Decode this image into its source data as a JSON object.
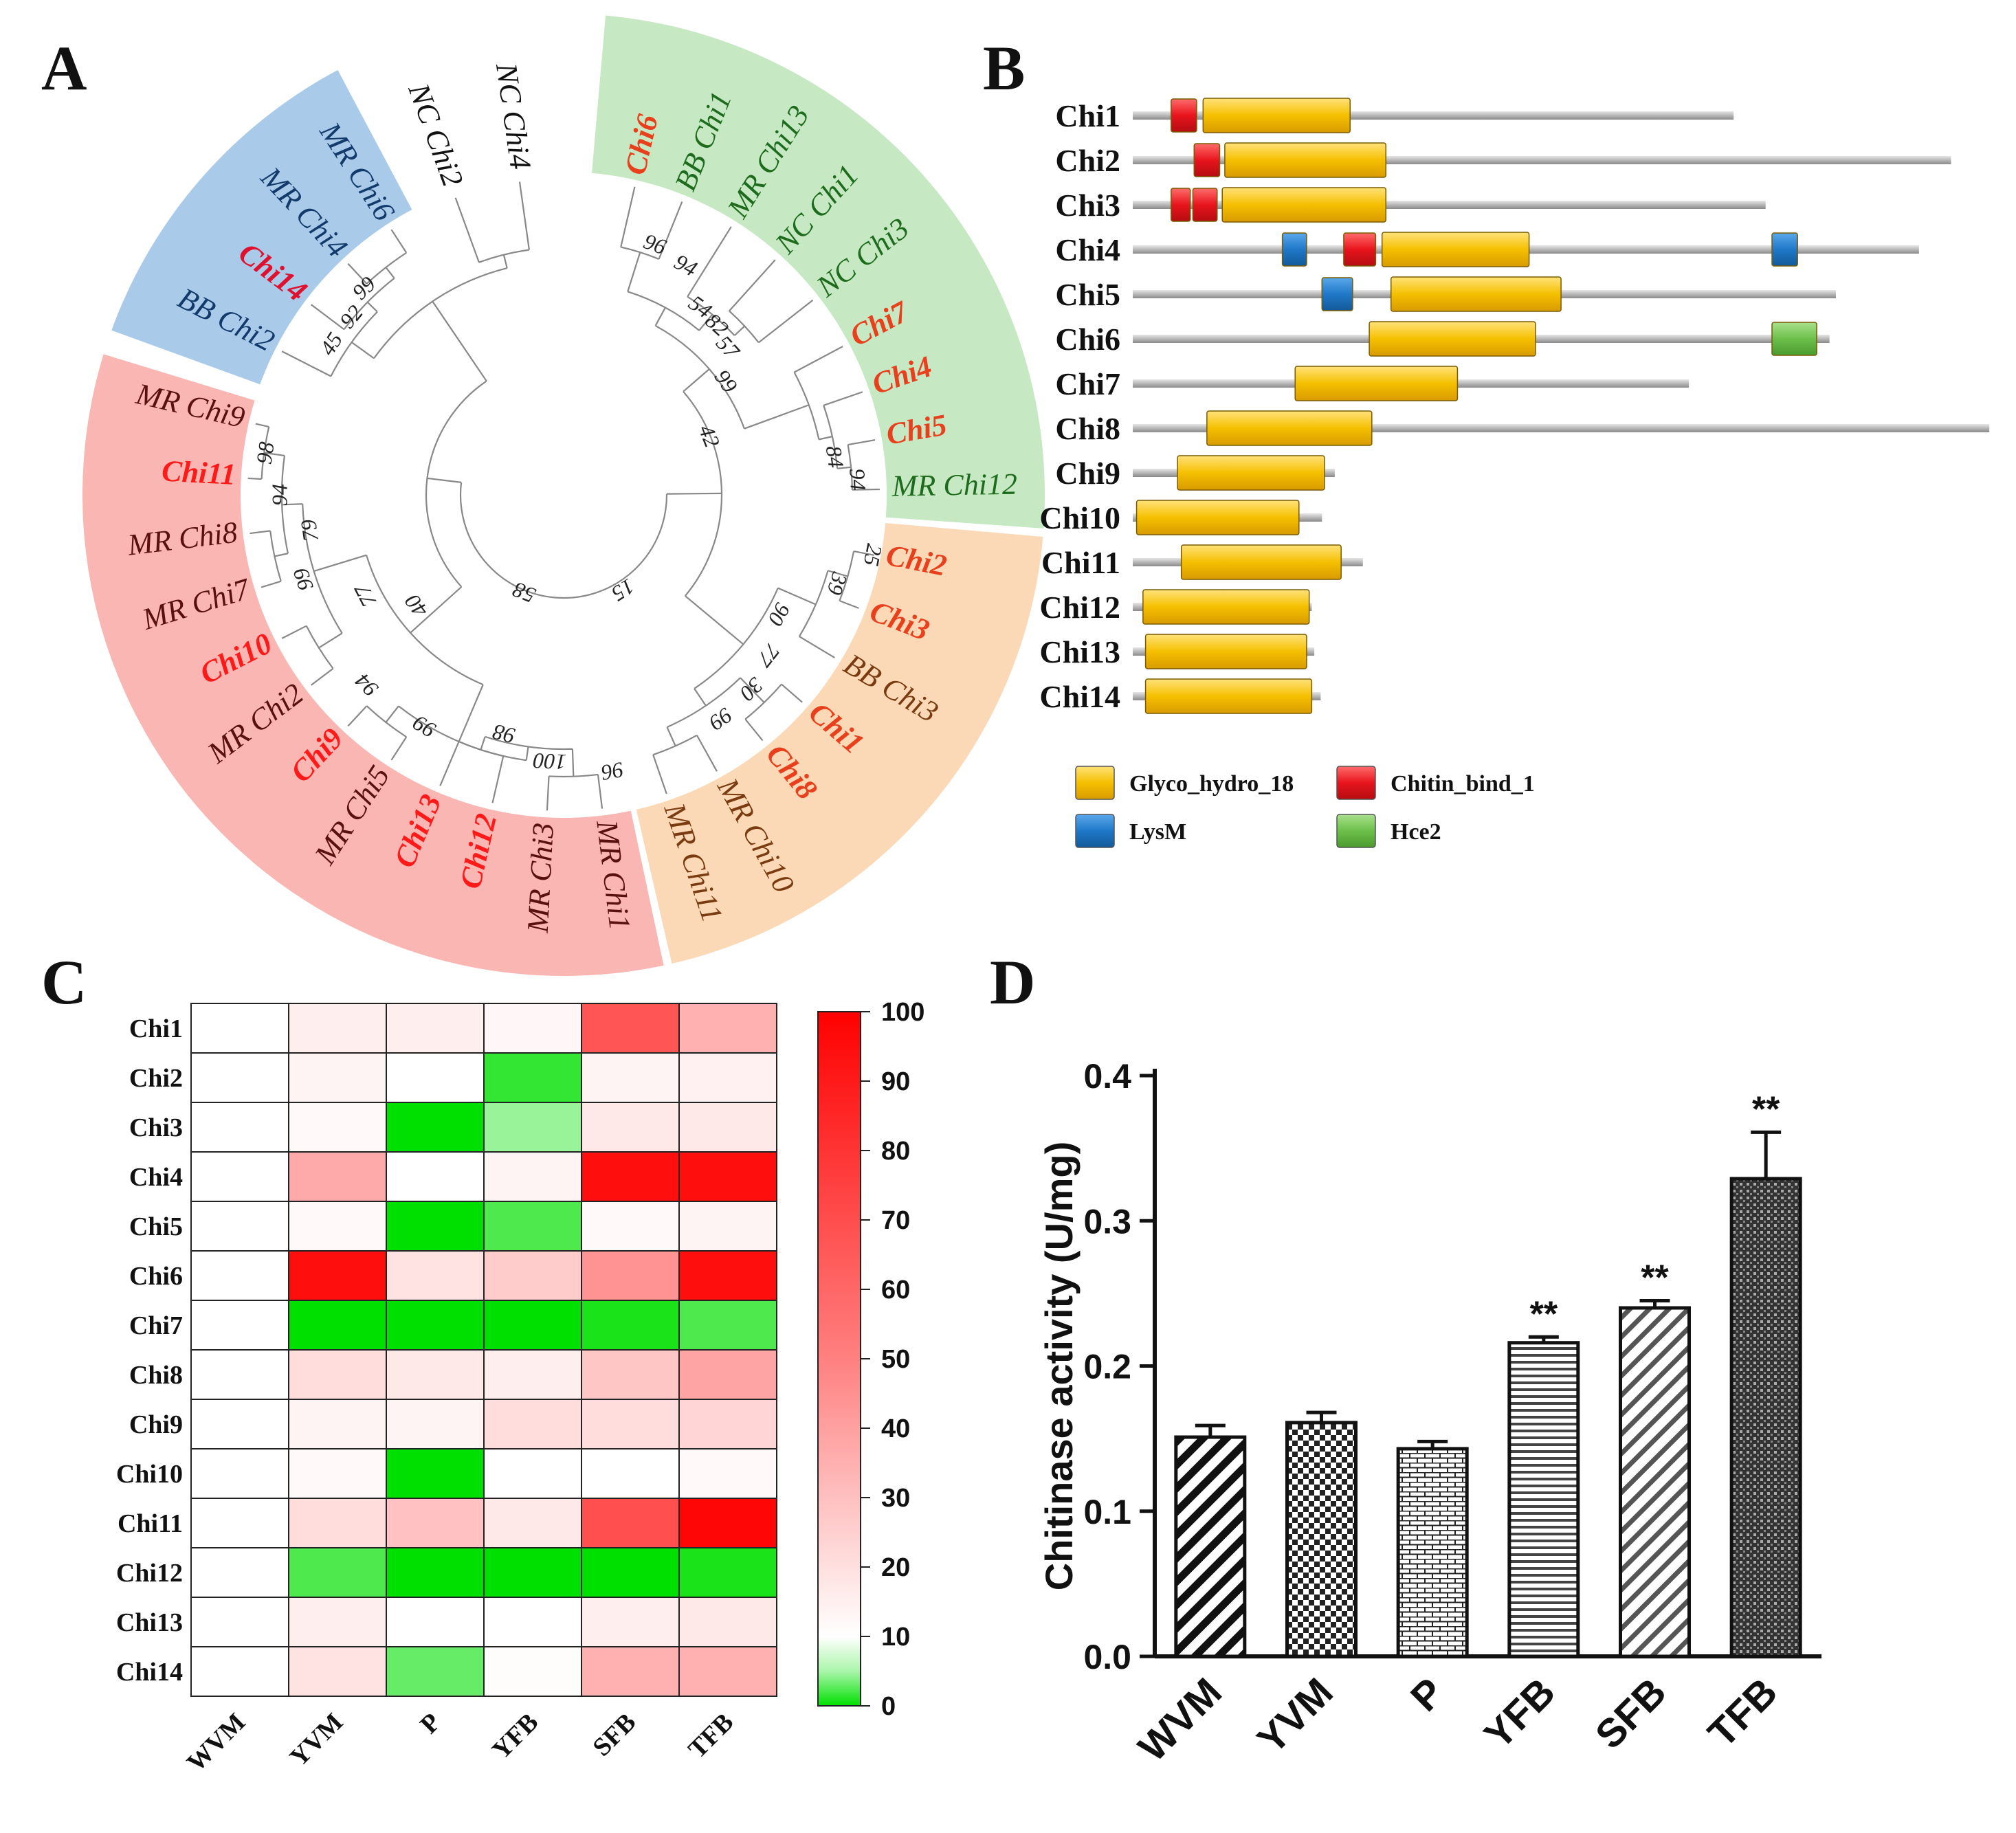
{
  "panels": {
    "a": "A",
    "b": "B",
    "c": "C",
    "d": "D"
  },
  "colors": {
    "green_clade": "#c6e8c2",
    "orange_clade": "#fcd9b6",
    "red_clade": "#f9b6b2",
    "blue_clade": "#a9cbe9",
    "highlight_text": "#ff1a1a",
    "glyco": "#f5c000",
    "chitin": "#e8141c",
    "lysm": "#1f78c8",
    "hce2": "#6cc04a"
  },
  "tree": {
    "leaves": [
      {
        "label": "Chi6",
        "angle": -77,
        "color": "#e8401c",
        "bold": true
      },
      {
        "label": "BB Chi1",
        "angle": -68,
        "color": "#1d6b1d"
      },
      {
        "label": "MR Chi13",
        "angle": -58,
        "color": "#1d6b1d"
      },
      {
        "label": "NC Chi1",
        "angle": -48,
        "color": "#1d6b1d"
      },
      {
        "label": "NC Chi3",
        "angle": -38,
        "color": "#1d6b1d"
      },
      {
        "label": "Chi7",
        "angle": -28,
        "color": "#e8401c",
        "bold": true
      },
      {
        "label": "Chi4",
        "angle": -19,
        "color": "#e8401c",
        "bold": true
      },
      {
        "label": "Chi5",
        "angle": -10,
        "color": "#e8401c",
        "bold": true
      },
      {
        "label": "MR Chi12",
        "angle": -1,
        "color": "#1d6b1d"
      },
      {
        "label": "Chi2",
        "angle": 11,
        "color": "#e8401c",
        "bold": true
      },
      {
        "label": "Chi3",
        "angle": 21,
        "color": "#e8401c",
        "bold": true
      },
      {
        "label": "BB Chi3",
        "angle": 31,
        "color": "#7a3b10"
      },
      {
        "label": "Chi1",
        "angle": 41,
        "color": "#e8401c",
        "bold": true
      },
      {
        "label": "Chi8",
        "angle": 51,
        "color": "#e8401c",
        "bold": true
      },
      {
        "label": "MR Chi10",
        "angle": 61,
        "color": "#7a3b10"
      },
      {
        "label": "MR Chi11",
        "angle": 71,
        "color": "#7a3b10"
      },
      {
        "label": "MR Chi1",
        "angle": 83,
        "color": "#5a1010"
      },
      {
        "label": "MR Chi3",
        "angle": 93,
        "color": "#5a1010"
      },
      {
        "label": "Chi12",
        "angle": 103,
        "color": "#ff1a1a",
        "bold": true
      },
      {
        "label": "Chi13",
        "angle": 113,
        "color": "#ff1a1a",
        "bold": true
      },
      {
        "label": "MR Chi5",
        "angle": 123,
        "color": "#5a1010"
      },
      {
        "label": "Chi9",
        "angle": 133,
        "color": "#ff1a1a",
        "bold": true
      },
      {
        "label": "MR Chi2",
        "angle": 143,
        "color": "#5a1010"
      },
      {
        "label": "Chi10",
        "angle": 153,
        "color": "#ff1a1a",
        "bold": true
      },
      {
        "label": "MR Chi7",
        "angle": 163,
        "color": "#5a1010"
      },
      {
        "label": "MR Chi8",
        "angle": 173,
        "color": "#5a1010"
      },
      {
        "label": "Chi11",
        "angle": 183,
        "color": "#ff1a1a",
        "bold": true
      },
      {
        "label": "MR Chi9",
        "angle": 193,
        "color": "#5a1010"
      },
      {
        "label": "BB Chi2",
        "angle": 207,
        "color": "#123a6b"
      },
      {
        "label": "Chi14",
        "angle": 217,
        "color": "#e0102f",
        "bold": true
      },
      {
        "label": "MR Chi4",
        "angle": 227,
        "color": "#123a6b"
      },
      {
        "label": "MR Chi6",
        "angle": 237,
        "color": "#123a6b"
      },
      {
        "label": "NC Chi2",
        "angle": 250,
        "color": "#111111"
      },
      {
        "label": "NC Chi4",
        "angle": 262,
        "color": "#111111"
      }
    ],
    "bootstrap": [
      {
        "v": "96",
        "a": -70,
        "r": 385
      },
      {
        "v": "94",
        "a": -62,
        "r": 375
      },
      {
        "v": "54",
        "a": -54,
        "r": 335
      },
      {
        "v": "82",
        "a": -48,
        "r": 330
      },
      {
        "v": "57",
        "a": -42,
        "r": 318
      },
      {
        "v": "99",
        "a": -35,
        "r": 285
      },
      {
        "v": "42",
        "a": -22,
        "r": 225
      },
      {
        "v": "84",
        "a": -8,
        "r": 395
      },
      {
        "v": "94",
        "a": -3,
        "r": 425
      },
      {
        "v": "25",
        "a": 11,
        "r": 455
      },
      {
        "v": "39",
        "a": 18,
        "r": 415
      },
      {
        "v": "90",
        "a": 29,
        "r": 355
      },
      {
        "v": "77",
        "a": 38,
        "r": 375
      },
      {
        "v": "30",
        "a": 46,
        "r": 390
      },
      {
        "v": "99",
        "a": 55,
        "r": 395
      },
      {
        "v": "96",
        "a": 80,
        "r": 405
      },
      {
        "v": "100",
        "a": 93,
        "r": 385
      },
      {
        "v": "98",
        "a": 104,
        "r": 355
      },
      {
        "v": "99",
        "a": 121,
        "r": 390
      },
      {
        "v": "94",
        "a": 136,
        "r": 395
      },
      {
        "v": "40",
        "a": 143,
        "r": 265
      },
      {
        "v": "77",
        "a": 153,
        "r": 320
      },
      {
        "v": "99",
        "a": 162,
        "r": 395
      },
      {
        "v": "79",
        "a": 172,
        "r": 370
      },
      {
        "v": "94",
        "a": 180,
        "r": 410
      },
      {
        "v": "98",
        "a": 188,
        "r": 435
      },
      {
        "v": "58",
        "a": 112,
        "r": 150
      },
      {
        "v": "15",
        "a": 58,
        "r": 160
      },
      {
        "v": "45",
        "a": 213,
        "r": 400
      },
      {
        "v": "92",
        "a": 220,
        "r": 400
      },
      {
        "v": "99",
        "a": 226,
        "r": 415
      }
    ]
  },
  "domains": {
    "proteins": [
      {
        "name": "Chi1",
        "length": 470,
        "domains": [
          {
            "type": "chitin",
            "start": 30,
            "end": 50
          },
          {
            "type": "glyco",
            "start": 55,
            "end": 170
          }
        ]
      },
      {
        "name": "Chi2",
        "length": 640,
        "domains": [
          {
            "type": "chitin",
            "start": 48,
            "end": 68
          },
          {
            "type": "glyco",
            "start": 72,
            "end": 198
          }
        ]
      },
      {
        "name": "Chi3",
        "length": 495,
        "domains": [
          {
            "type": "chitin",
            "start": 30,
            "end": 45
          },
          {
            "type": "chitin",
            "start": 47,
            "end": 66
          },
          {
            "type": "glyco",
            "start": 70,
            "end": 198
          }
        ]
      },
      {
        "name": "Chi4",
        "length": 615,
        "domains": [
          {
            "type": "lysm",
            "start": 117,
            "end": 136
          },
          {
            "type": "chitin",
            "start": 165,
            "end": 190
          },
          {
            "type": "glyco",
            "start": 195,
            "end": 310
          },
          {
            "type": "lysm",
            "start": 500,
            "end": 520
          }
        ]
      },
      {
        "name": "Chi5",
        "length": 550,
        "domains": [
          {
            "type": "lysm",
            "start": 148,
            "end": 172
          },
          {
            "type": "glyco",
            "start": 202,
            "end": 335
          }
        ]
      },
      {
        "name": "Chi6",
        "length": 545,
        "domains": [
          {
            "type": "glyco",
            "start": 185,
            "end": 315
          },
          {
            "type": "hce2",
            "start": 500,
            "end": 535
          }
        ]
      },
      {
        "name": "Chi7",
        "length": 435,
        "domains": [
          {
            "type": "glyco",
            "start": 127,
            "end": 254
          }
        ]
      },
      {
        "name": "Chi8",
        "length": 670,
        "domains": [
          {
            "type": "glyco",
            "start": 58,
            "end": 187
          }
        ]
      },
      {
        "name": "Chi9",
        "length": 158,
        "domains": [
          {
            "type": "glyco",
            "start": 35,
            "end": 150
          }
        ]
      },
      {
        "name": "Chi10",
        "length": 148,
        "domains": [
          {
            "type": "glyco",
            "start": 3,
            "end": 130
          }
        ]
      },
      {
        "name": "Chi11",
        "length": 180,
        "domains": [
          {
            "type": "glyco",
            "start": 38,
            "end": 163
          }
        ]
      },
      {
        "name": "Chi12",
        "length": 140,
        "domains": [
          {
            "type": "glyco",
            "start": 8,
            "end": 138
          }
        ]
      },
      {
        "name": "Chi13",
        "length": 142,
        "domains": [
          {
            "type": "glyco",
            "start": 10,
            "end": 136
          }
        ]
      },
      {
        "name": "Chi14",
        "length": 147,
        "domains": [
          {
            "type": "glyco",
            "start": 10,
            "end": 140
          }
        ]
      }
    ],
    "legend": [
      {
        "type": "glyco",
        "label": "Glyco_hydro_18"
      },
      {
        "type": "chitin",
        "label": "Chitin_bind_1"
      },
      {
        "type": "lysm",
        "label": "LysM"
      },
      {
        "type": "hce2",
        "label": "Hce2"
      }
    ]
  },
  "chart_data": [
    {
      "type": "heatmap",
      "rows": [
        "Chi1",
        "Chi2",
        "Chi3",
        "Chi4",
        "Chi5",
        "Chi6",
        "Chi7",
        "Chi8",
        "Chi9",
        "Chi10",
        "Chi11",
        "Chi12",
        "Chi13",
        "Chi14"
      ],
      "columns": [
        "WVM",
        "YVM",
        "P",
        "YFB",
        "SFB",
        "TFB"
      ],
      "values": [
        [
          10,
          16,
          16,
          13,
          70,
          38
        ],
        [
          10,
          14,
          10,
          2,
          14,
          15
        ],
        [
          10,
          12,
          0,
          6,
          18,
          18
        ],
        [
          10,
          40,
          10,
          14,
          95,
          95
        ],
        [
          10,
          12,
          0,
          3,
          12,
          14
        ],
        [
          10,
          95,
          20,
          28,
          48,
          95
        ],
        [
          10,
          0,
          0,
          0,
          1,
          3
        ],
        [
          10,
          22,
          18,
          16,
          30,
          42
        ],
        [
          10,
          14,
          14,
          22,
          22,
          25
        ],
        [
          10,
          12,
          0,
          10,
          10,
          12
        ],
        [
          10,
          22,
          32,
          18,
          72,
          98
        ],
        [
          10,
          3,
          0,
          0,
          0,
          1
        ],
        [
          10,
          16,
          10,
          10,
          16,
          18
        ],
        [
          10,
          20,
          4,
          11,
          38,
          38
        ]
      ],
      "colorbar": {
        "min": 0,
        "max": 100,
        "ticks": [
          0,
          10,
          20,
          30,
          40,
          50,
          60,
          70,
          80,
          90,
          100
        ]
      }
    },
    {
      "type": "bar",
      "categories": [
        "WVM",
        "YVM",
        "P",
        "YFB",
        "SFB",
        "TFB"
      ],
      "values": [
        0.151,
        0.161,
        0.143,
        0.216,
        0.24,
        0.329
      ],
      "errors": [
        0.008,
        0.007,
        0.005,
        0.004,
        0.005,
        0.032
      ],
      "significance": [
        "",
        "",
        "",
        "**",
        "**",
        "**"
      ],
      "ylabel": "Chitinase activity (U/mg)",
      "ylim": [
        0,
        0.4
      ],
      "yticks": [
        "0.0",
        "0.1",
        "0.2",
        "0.3",
        "0.4"
      ]
    }
  ]
}
